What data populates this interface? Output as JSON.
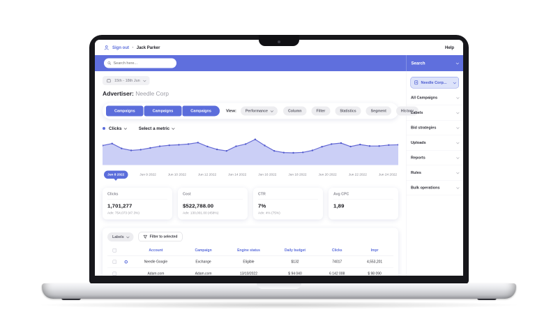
{
  "topbar": {
    "sign_out": "Sign out",
    "separator": "•",
    "user_name": "Jack Parker",
    "help": "Help"
  },
  "bluebar": {
    "search_placeholder": "Search here...",
    "sidebar_header": "Search"
  },
  "main": {
    "date_range": "15th - 18th Jun",
    "advertiser_label": "Advertiser:",
    "advertiser_name": "Needle Corp",
    "tabs": [
      "Campaigns",
      "Campaigns",
      "Campaigns"
    ],
    "view_label": "View:",
    "view_value": "Performance",
    "toolbar_buttons": [
      "Column",
      "Filter",
      "Statistics",
      "Segment",
      "History"
    ],
    "metric_selector": {
      "primary": "Clicks",
      "secondary": "Select a metric"
    },
    "cards": [
      {
        "title": "Clicks",
        "value": "1,701,277",
        "subtext": "Adv: 754,073 (47.3%)"
      },
      {
        "title": "Cost",
        "value": "$522,788.00",
        "subtext": "Adv: 130,001.00 (458%)"
      },
      {
        "title": "CTR",
        "value": "7%",
        "subtext": "Adv: 4% (75%)"
      },
      {
        "title": "Avg CPC",
        "value": "1,89",
        "subtext": ""
      }
    ],
    "table": {
      "labels_dropdown": "Labels",
      "filter_button": "Filter to selected",
      "columns": [
        "Account",
        "Campaign",
        "Engine status",
        "Daily budget",
        "Clicks",
        "Impr"
      ],
      "rows": [
        [
          "Needle Google",
          "Exchange",
          "Eligible",
          "$132",
          "74017",
          "4,553,201"
        ],
        [
          "Adam.com",
          "Adam.com",
          "13/10/2022",
          "$ 94 040",
          "6 142 008",
          "$ 98 090"
        ]
      ]
    }
  },
  "sidebar": {
    "advertiser_pill": "Needle Corp...",
    "items": [
      {
        "label": "All Campaigns"
      },
      {
        "label": "Labels"
      },
      {
        "label": "Bid strategies"
      },
      {
        "label": "Uploads"
      },
      {
        "label": "Reports"
      },
      {
        "label": "Rules"
      },
      {
        "label": "Bulk operations"
      }
    ]
  },
  "chart_data": {
    "type": "area",
    "title": "",
    "series": [
      {
        "name": "Clicks",
        "values": [
          60,
          68,
          48,
          40,
          43,
          50,
          57,
          61,
          63,
          66,
          72,
          56,
          44,
          38,
          57,
          66,
          85,
          60,
          38,
          31,
          30,
          32,
          40,
          55,
          66,
          70,
          56,
          64,
          58,
          58,
          62,
          63
        ]
      }
    ],
    "x_labels": [
      "Jun 8 2022",
      "Jun 9 2022",
      "Jun 10 2022",
      "Jun 12 2022",
      "Jun 14 2022",
      "Jun 16 2022",
      "Jun 18 2022",
      "Jun 20 2022",
      "Jun 22 2022",
      "Jun 24 2022"
    ],
    "selected_x_label": "Jun 8 2022",
    "ylim": [
      0,
      100
    ],
    "grid": false,
    "legend": "none",
    "line_color": "#666bd6",
    "marker_color": "#5059cc",
    "fill_color": "#8b95ec",
    "fill_opacity": 0.45
  },
  "colors": {
    "accent": "#5b6ddb",
    "bluebar": "#5f6fdd",
    "text_dark": "#1e1e26",
    "text_gray": "#8e8e98"
  },
  "icons": {
    "person": "person-icon",
    "search": "magnifier-icon",
    "calendar": "calendar-icon",
    "document": "document-icon",
    "funnel": "funnel-icon",
    "chevron": "chevron-down-icon"
  }
}
